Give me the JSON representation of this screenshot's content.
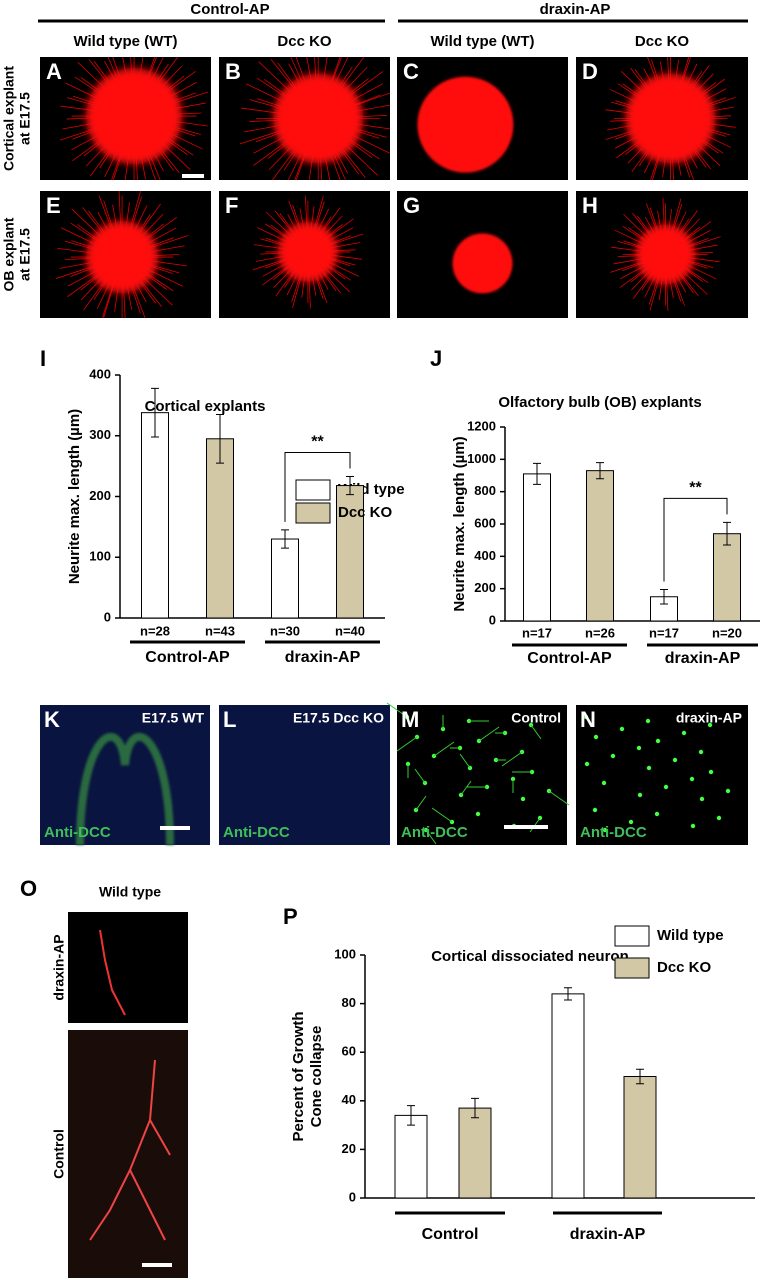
{
  "headers": {
    "groups": [
      "Control-AP",
      "draxin-AP"
    ],
    "columns": [
      "Wild type (WT)",
      "Dcc KO",
      "Wild type (WT)",
      "Dcc KO"
    ],
    "rows": [
      [
        "Cortical explant",
        "at E17.5"
      ],
      [
        "OB explant",
        "at E17.5"
      ]
    ]
  },
  "explant_panels": [
    "A",
    "B",
    "C",
    "D",
    "E",
    "F",
    "G",
    "H"
  ],
  "micrographs": [
    {
      "letter": "K",
      "corner": "E17.5 WT",
      "stain": "Anti-DCC"
    },
    {
      "letter": "L",
      "corner": "E17.5 Dcc KO",
      "stain": "Anti-DCC"
    },
    {
      "letter": "M",
      "corner": "Control",
      "stain": "Anti-DCC"
    },
    {
      "letter": "N",
      "corner": "draxin-AP",
      "stain": "Anti-DCC"
    }
  ],
  "panel_o": {
    "letter": "O",
    "title": "Wild type",
    "rows": [
      "draxin-AP",
      "Control"
    ]
  },
  "chart_data": [
    {
      "type": "bar",
      "panel": "I",
      "title": "Cortical explants",
      "y_label": [
        "Neurite max. length (µm)"
      ],
      "categories": [
        "Control-AP",
        "draxin-AP"
      ],
      "series": [
        {
          "name": "Wild type",
          "color": "#ffffff",
          "values": [
            338,
            130
          ],
          "errors": [
            40,
            15
          ],
          "n_labels": [
            "n=28",
            "n=30"
          ]
        },
        {
          "name": "Dcc KO",
          "color": "#d2c8a6",
          "values": [
            295,
            218
          ],
          "errors": [
            40,
            15
          ],
          "n_labels": [
            "n=43",
            "n=40"
          ]
        }
      ],
      "ylim": [
        0,
        400
      ],
      "yticks": [
        0,
        100,
        200,
        300,
        400
      ],
      "significance": "**"
    },
    {
      "type": "bar",
      "panel": "J",
      "title": "Olfactory bulb (OB) explants",
      "y_label": [
        "Neurite max. length (µm)"
      ],
      "categories": [
        "Control-AP",
        "draxin-AP"
      ],
      "series": [
        {
          "name": "Wild type",
          "color": "#ffffff",
          "values": [
            910,
            150
          ],
          "errors": [
            65,
            45
          ],
          "n_labels": [
            "n=17",
            "n=17"
          ]
        },
        {
          "name": "Dcc KO",
          "color": "#d2c8a6",
          "values": [
            930,
            540
          ],
          "errors": [
            50,
            70
          ],
          "n_labels": [
            "n=26",
            "n=20"
          ]
        }
      ],
      "ylim": [
        0,
        1200
      ],
      "yticks": [
        0,
        200,
        400,
        600,
        800,
        1000,
        1200
      ],
      "significance": "**"
    },
    {
      "type": "bar",
      "panel": "P",
      "title": "Cortical dissociated neuron",
      "y_label": [
        "Percent of Growth",
        "Cone collapse"
      ],
      "categories": [
        "Control",
        "draxin-AP"
      ],
      "series": [
        {
          "name": "Wild type",
          "color": "#ffffff",
          "values": [
            34,
            84
          ],
          "errors": [
            4,
            2.5
          ]
        },
        {
          "name": "Dcc KO",
          "color": "#d2c8a6",
          "values": [
            37,
            50
          ],
          "errors": [
            4,
            3
          ]
        }
      ],
      "ylim": [
        0,
        100
      ],
      "yticks": [
        0,
        20,
        40,
        60,
        80,
        100
      ]
    }
  ]
}
